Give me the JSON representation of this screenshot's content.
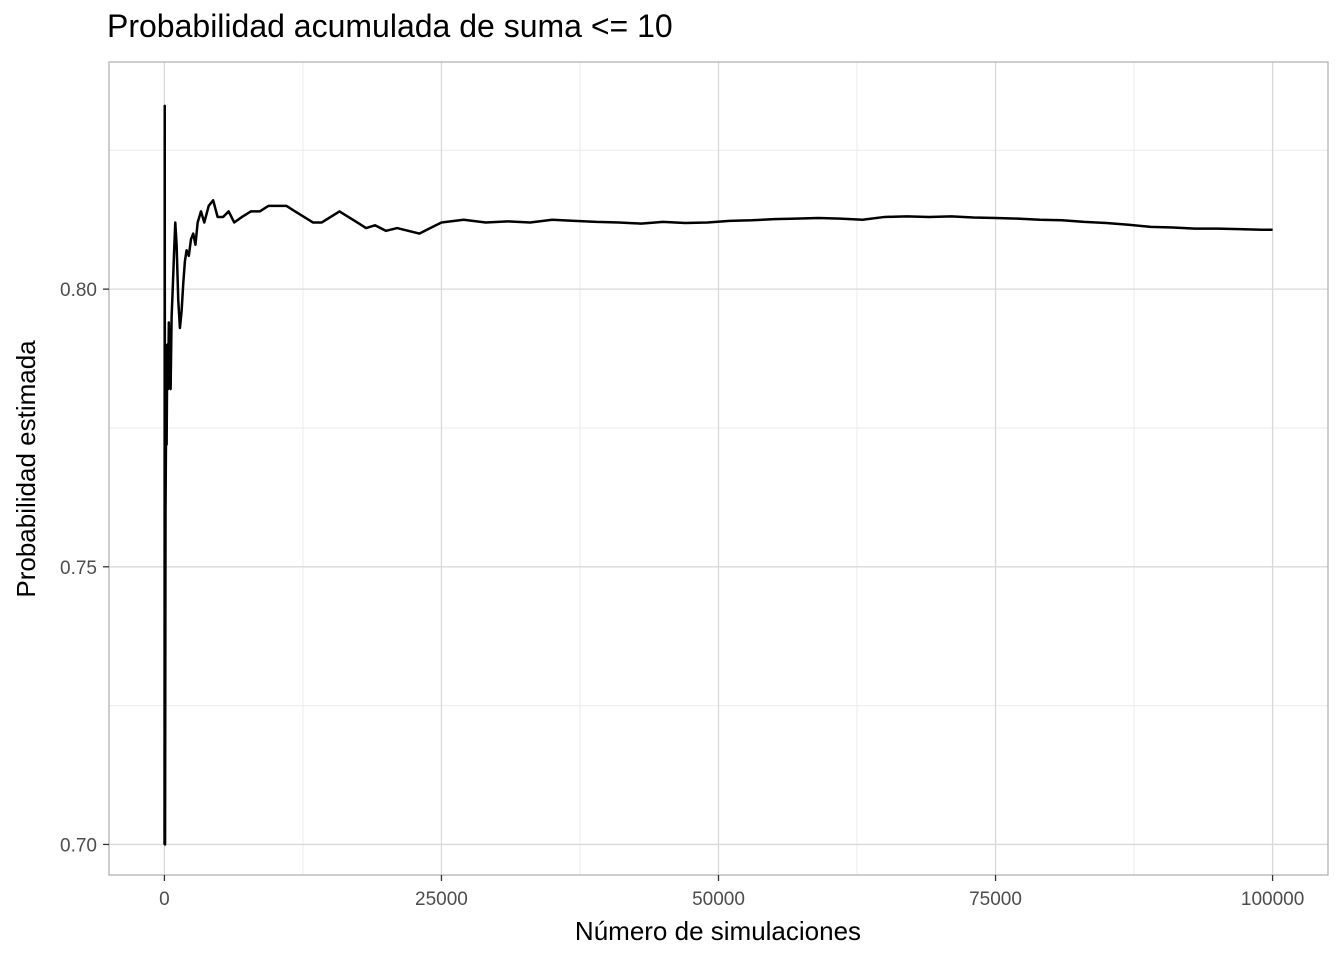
{
  "chart_data": {
    "type": "line",
    "title": "Probabilidad acumulada de suma <= 10",
    "xlabel": "Número de simulaciones",
    "ylabel": "Probabilidad estimada",
    "xlim": [
      -5000,
      105000
    ],
    "ylim": [
      0.6945,
      0.8409
    ],
    "x_ticks": [
      0,
      25000,
      50000,
      75000,
      100000
    ],
    "x_tick_labels": [
      "0",
      "25000",
      "50000",
      "75000",
      "100000"
    ],
    "y_ticks": [
      0.7,
      0.75,
      0.8
    ],
    "y_tick_labels": [
      "0.70",
      "0.75",
      "0.80"
    ],
    "grid": true,
    "legend": "none",
    "line_color": "#000000",
    "series": [
      {
        "x": [
          10,
          30,
          60,
          100,
          150,
          200,
          260,
          330,
          400,
          480,
          560,
          650,
          750,
          860,
          980,
          1100,
          1250,
          1400,
          1550,
          1700,
          1850,
          2000,
          2200,
          2400,
          2600,
          2800,
          3000,
          3300,
          3600,
          4000,
          4400,
          4800,
          5300,
          5800,
          6300,
          7000,
          7800,
          8600,
          9400,
          10200,
          11000,
          11800,
          12600,
          13400,
          14200,
          15000,
          15800,
          16600,
          17400,
          18200,
          19000,
          20000,
          21000,
          22000,
          23000,
          24000,
          25000,
          27000,
          29000,
          31000,
          33000,
          35000,
          37000,
          39000,
          41000,
          43000,
          45000,
          47000,
          49000,
          51000,
          53000,
          55000,
          57000,
          59000,
          61000,
          63000,
          65000,
          67000,
          69000,
          71000,
          73000,
          75000,
          77000,
          79000,
          81000,
          83000,
          85000,
          87000,
          89000,
          91000,
          93000,
          95000,
          97000,
          99000,
          100000
        ],
        "y": [
          0.7,
          0.833,
          0.7,
          0.76,
          0.775,
          0.772,
          0.79,
          0.782,
          0.794,
          0.785,
          0.782,
          0.795,
          0.8,
          0.806,
          0.812,
          0.808,
          0.798,
          0.793,
          0.796,
          0.801,
          0.805,
          0.807,
          0.806,
          0.809,
          0.81,
          0.808,
          0.812,
          0.814,
          0.812,
          0.815,
          0.816,
          0.813,
          0.813,
          0.814,
          0.812,
          0.813,
          0.814,
          0.814,
          0.815,
          0.815,
          0.815,
          0.814,
          0.813,
          0.812,
          0.812,
          0.813,
          0.814,
          0.813,
          0.812,
          0.811,
          0.8115,
          0.8105,
          0.811,
          0.8105,
          0.81,
          0.811,
          0.812,
          0.8125,
          0.812,
          0.8122,
          0.812,
          0.8125,
          0.8123,
          0.8121,
          0.812,
          0.8118,
          0.8121,
          0.8119,
          0.812,
          0.8123,
          0.8124,
          0.8126,
          0.8127,
          0.8128,
          0.8127,
          0.8125,
          0.813,
          0.8131,
          0.813,
          0.8131,
          0.8129,
          0.8128,
          0.8127,
          0.8125,
          0.8124,
          0.8121,
          0.8119,
          0.8116,
          0.8112,
          0.8111,
          0.8109,
          0.8109,
          0.8108,
          0.8107,
          0.8107
        ]
      }
    ]
  }
}
